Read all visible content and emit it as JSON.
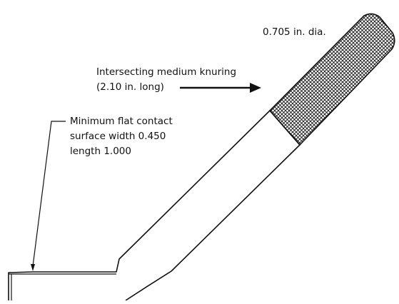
{
  "callouts": {
    "diameter": "0.705 in. dia.",
    "knurling_line1": "Intersecting medium knuring",
    "knurling_line2": "(2.10 in. long)",
    "contact_line1": "Minimum flat contact",
    "contact_line2": "surface width 0.450",
    "contact_line3": "length 1.000"
  },
  "colors": {
    "stroke": "#111111",
    "background": "#ffffff"
  }
}
